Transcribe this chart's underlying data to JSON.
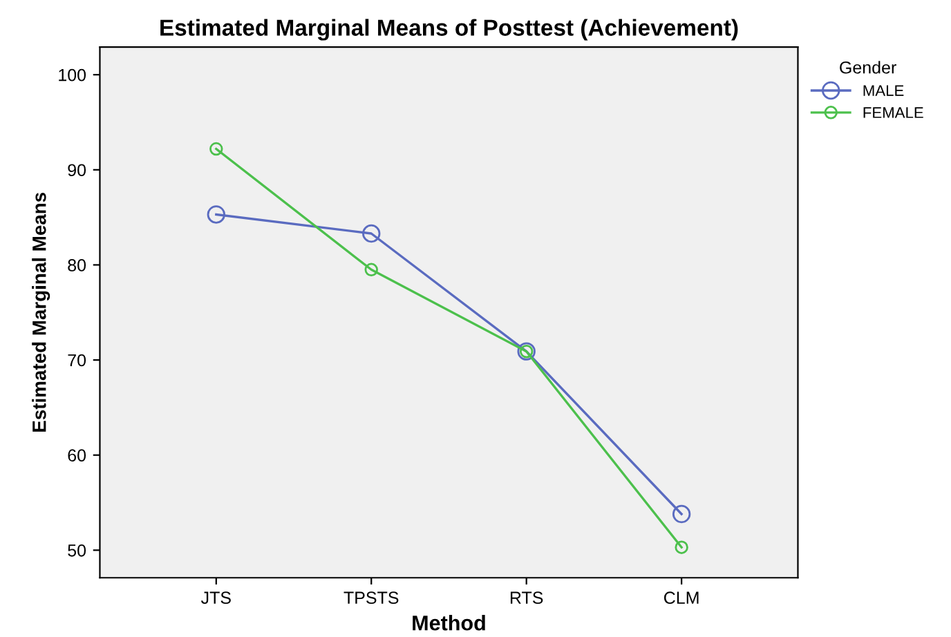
{
  "chart_data": {
    "type": "line",
    "title": "Estimated Marginal Means of Posttest (Achievement)",
    "xlabel": "Method",
    "ylabel": "Estimated Marginal Means",
    "legend_title": "Gender",
    "categories": [
      "JTS",
      "TPSTS",
      "RTS",
      "CLM"
    ],
    "series": [
      {
        "name": "MALE",
        "color": "#5a6bc0",
        "values": [
          85.3,
          83.3,
          70.9,
          53.8
        ]
      },
      {
        "name": "FEMALE",
        "color": "#4cc04c",
        "values": [
          92.2,
          79.5,
          70.9,
          50.3
        ]
      }
    ],
    "ylim": [
      47.1,
      102.9
    ],
    "yticks": [
      50,
      60,
      70,
      80,
      90,
      100
    ],
    "grid": false,
    "legend": "top right",
    "marker": "circle",
    "line_style": "solid"
  }
}
